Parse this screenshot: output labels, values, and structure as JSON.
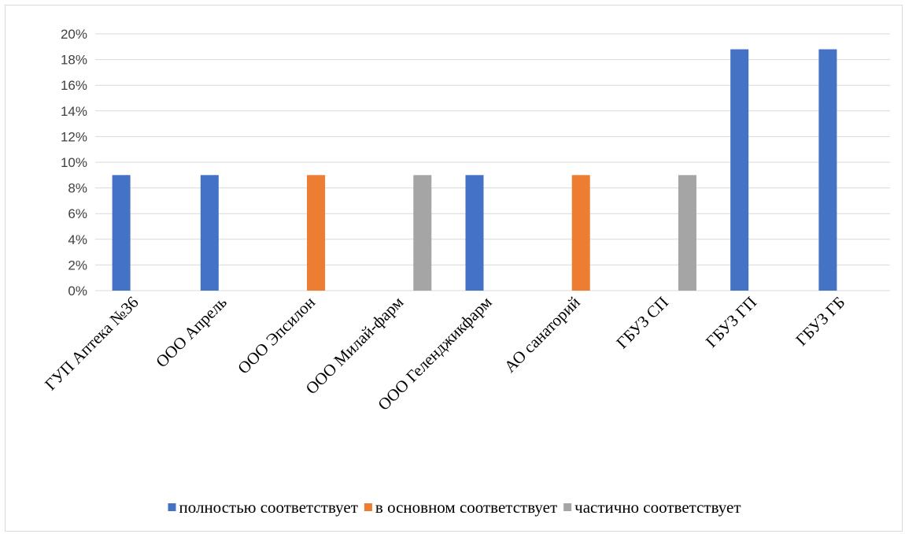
{
  "chart_data": {
    "type": "bar",
    "categories": [
      "ГУП Аптека №36",
      "ООО Апрель",
      "ООО Эпсилон",
      "ООО Милай-фарм",
      "ООО Геленджикфарм",
      "АО санаторий",
      "ГБУЗ СП",
      "ГБУЗ ГП",
      "ГБУЗ ГБ"
    ],
    "series": [
      {
        "name": "полностью соответствует",
        "color": "#4472c4",
        "values": [
          9,
          9,
          null,
          null,
          9,
          null,
          null,
          18.8,
          18.8
        ]
      },
      {
        "name": "в основном соответствует",
        "color": "#ed7d31",
        "values": [
          null,
          null,
          9,
          null,
          null,
          9,
          null,
          null,
          null
        ]
      },
      {
        "name": "частично соответствует",
        "color": "#a5a5a5",
        "values": [
          null,
          null,
          null,
          9,
          null,
          null,
          9,
          null,
          null
        ]
      }
    ],
    "ylim": [
      0,
      20
    ],
    "y_ticks": [
      "0%",
      "2%",
      "4%",
      "6%",
      "8%",
      "10%",
      "12%",
      "14%",
      "16%",
      "18%",
      "20%"
    ],
    "grid": true,
    "legend_position": "bottom",
    "gridline_color": "#d9d9d9"
  }
}
